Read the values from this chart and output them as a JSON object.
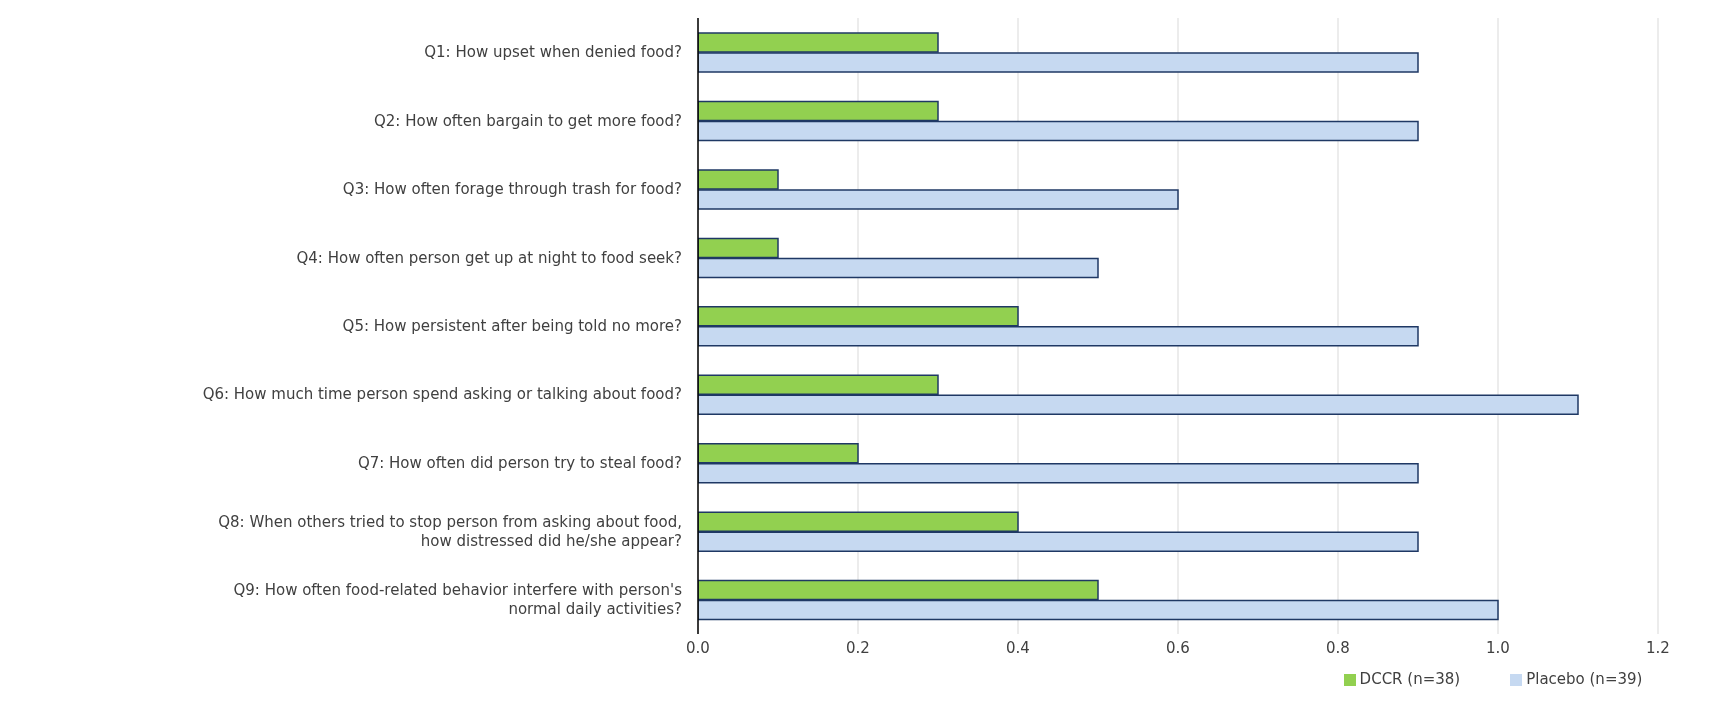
{
  "chart_data": {
    "type": "bar",
    "orientation": "horizontal",
    "categories": [
      "Q1: How upset when denied food?",
      "Q2: How often bargain to get more food?",
      "Q3: How often forage through trash for food?",
      "Q4: How often person get up at night to food seek?",
      "Q5: How persistent after being told no more?",
      "Q6: How much time person spend asking or talking about food?",
      "Q7: How often did person try to steal food?",
      "Q8: When others tried to stop person from asking about food, how distressed did he/she appear?",
      "Q9: How often food-related behavior interfere with person's normal daily activities?"
    ],
    "series": [
      {
        "name": "DCCR (n=38)",
        "color": "#92d050",
        "values": [
          0.3,
          0.3,
          0.1,
          0.1,
          0.4,
          0.3,
          0.2,
          0.4,
          0.5
        ]
      },
      {
        "name": "Placebo (n=39)",
        "color": "#c6d9f1",
        "values": [
          0.9,
          0.9,
          0.6,
          0.5,
          0.9,
          1.1,
          0.9,
          0.9,
          1.0
        ]
      }
    ],
    "xlim": [
      0,
      1.2
    ],
    "xticks": [
      {
        "value": 0,
        "label": "0.0"
      },
      {
        "value": 0.2,
        "label": "0.2"
      },
      {
        "value": 0.4,
        "label": "0.4"
      },
      {
        "value": 0.6,
        "label": "0.6"
      },
      {
        "value": 0.8,
        "label": "0.8"
      },
      {
        "value": 1.0,
        "label": "1.0"
      },
      {
        "value": 1.2,
        "label": "1.2"
      }
    ],
    "grid": "x",
    "legend": "bottom"
  }
}
